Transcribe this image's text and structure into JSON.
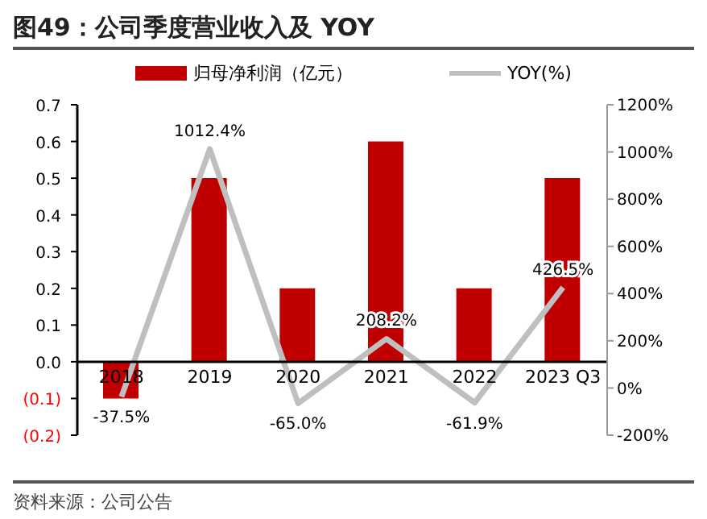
{
  "chart_data": {
    "type": "bar",
    "title": "图49：公司季度营业收入及 YOY",
    "annotations": [
      "资料来源：公司公告"
    ],
    "categories": [
      "2018",
      "2019",
      "2020",
      "2021",
      "2022",
      "2023 Q3"
    ],
    "series": [
      {
        "name": "归母净利润（亿元）",
        "color": "#c00000",
        "values": [
          -0.1,
          0.5,
          0.2,
          0.6,
          0.2,
          0.5
        ]
      },
      {
        "name": "YOY(%)",
        "type": "line",
        "axis": "y2",
        "color": "#bfbfbf",
        "values": [
          -37.5,
          1012.4,
          -65.0,
          208.2,
          -61.9,
          426.5
        ],
        "value_labels": [
          "-37.5%",
          "1012.4%",
          "-65.0%",
          "208.2%",
          "-61.9%",
          "426.5%"
        ]
      }
    ],
    "ylim": [
      -0.2,
      0.7
    ],
    "yticks": [
      {
        "value": -0.2,
        "label": "(0.2)"
      },
      {
        "value": -0.1,
        "label": "(0.1)"
      },
      {
        "value": 0,
        "label": "0.0"
      },
      {
        "value": 0.1,
        "label": "0.1"
      },
      {
        "value": 0.2,
        "label": "0.2"
      },
      {
        "value": 0.3,
        "label": "0.3"
      },
      {
        "value": 0.4,
        "label": "0.4"
      },
      {
        "value": 0.5,
        "label": "0.5"
      },
      {
        "value": 0.6,
        "label": "0.6"
      },
      {
        "value": 0.7,
        "label": "0.7"
      }
    ],
    "y2lim": [
      -200,
      1200
    ],
    "y2ticks": [
      {
        "value": -200,
        "label": "-200%"
      },
      {
        "value": 0,
        "label": "0%"
      },
      {
        "value": 200,
        "label": "200%"
      },
      {
        "value": 400,
        "label": "400%"
      },
      {
        "value": 600,
        "label": "600%"
      },
      {
        "value": 800,
        "label": "800%"
      },
      {
        "value": 1000,
        "label": "1000%"
      },
      {
        "value": 1200,
        "label": "1200%"
      }
    ],
    "legend": "top",
    "marker": "none"
  }
}
